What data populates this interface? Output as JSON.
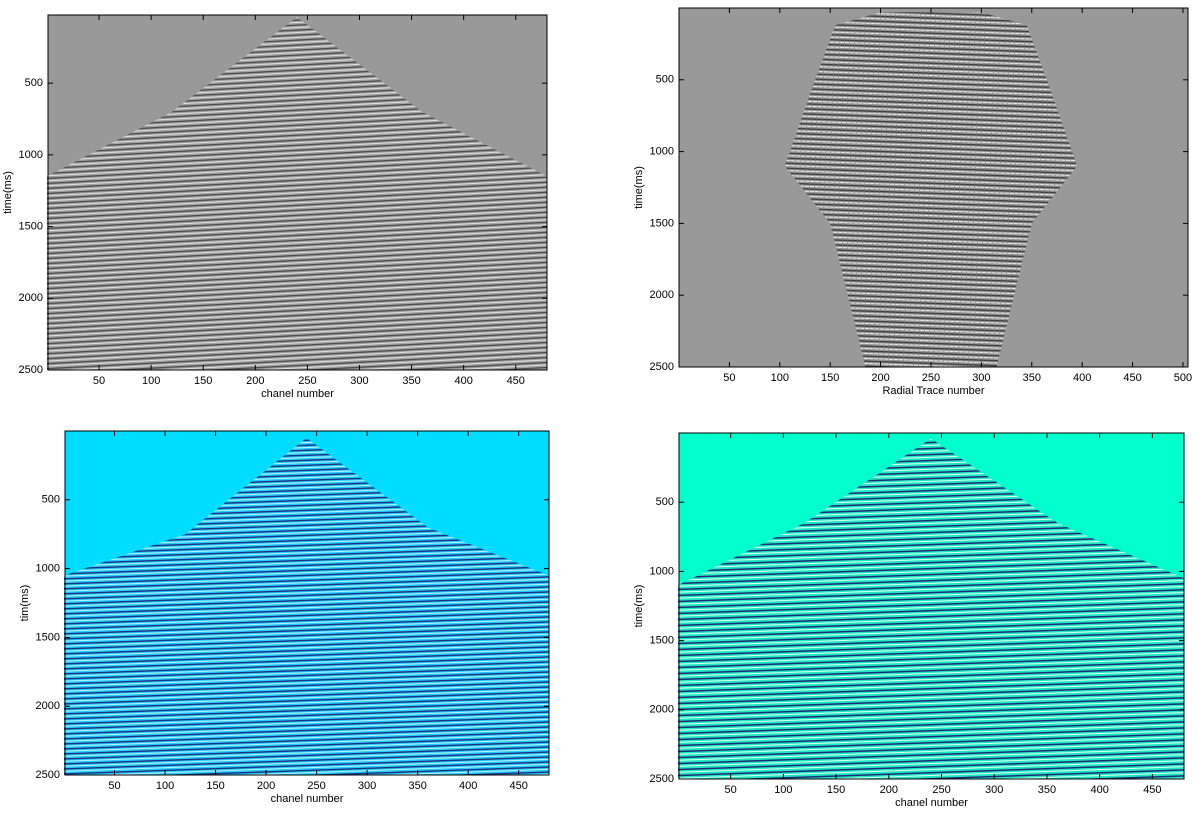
{
  "chart_data": [
    {
      "type": "image",
      "xlabel": "chanel number",
      "ylabel": "time(ms)",
      "background": "#999999",
      "xlim": [
        1,
        480
      ],
      "ylim": [
        2500,
        25
      ],
      "xticks": [
        50,
        100,
        150,
        200,
        250,
        300,
        350,
        400,
        450
      ],
      "yticks": [
        500,
        1000,
        1500,
        2000,
        2500
      ]
    },
    {
      "type": "image",
      "xlabel": "Radial Trace number",
      "ylabel": "time(ms)",
      "background": "#999999",
      "xlim": [
        0,
        505
      ],
      "ylim": [
        2500,
        0
      ],
      "xticks": [
        50,
        100,
        150,
        200,
        250,
        300,
        350,
        400,
        450,
        500
      ],
      "yticks": [
        500,
        1000,
        1500,
        2000,
        2500
      ]
    },
    {
      "type": "image",
      "xlabel": "chanel number",
      "ylabel": "tim(ms)",
      "background": "#00dcff",
      "xlim": [
        1,
        480
      ],
      "ylim": [
        2500,
        0
      ],
      "xticks": [
        50,
        100,
        150,
        200,
        250,
        300,
        350,
        400,
        450
      ],
      "yticks": [
        500,
        1000,
        1500,
        2000,
        2500
      ]
    },
    {
      "type": "image",
      "xlabel": "chanel number",
      "ylabel": "time(ms)",
      "background": "#00ffcc",
      "xlim": [
        1,
        480
      ],
      "ylim": [
        2500,
        0
      ],
      "xticks": [
        50,
        100,
        150,
        200,
        250,
        300,
        350,
        400,
        450
      ],
      "yticks": [
        500,
        1000,
        1500,
        2000,
        2500
      ]
    }
  ]
}
